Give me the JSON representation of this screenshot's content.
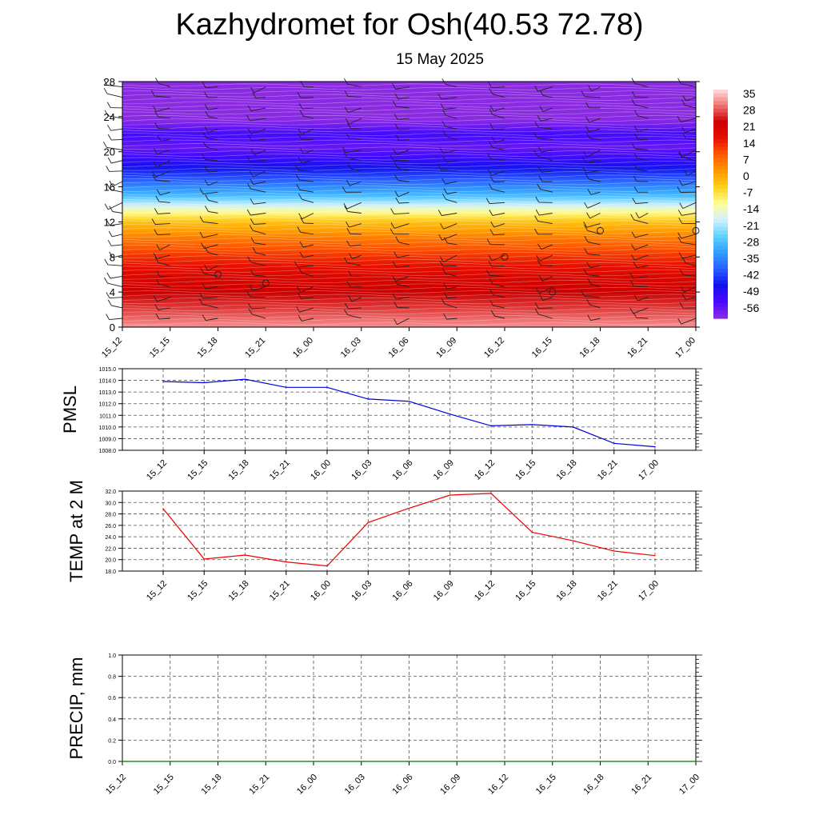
{
  "title": "Kazhydromet for Osh(40.53 72.78)",
  "subtitle": "15 May 2025",
  "colors": {
    "pmsl_line": "#0000dd",
    "temp_line": "#ee0000",
    "precip_line": "#007700",
    "colormap": [
      "#8a2be2",
      "#4b0aff",
      "#1010ee",
      "#2a5cff",
      "#2f9cff",
      "#5fd0ff",
      "#cff0ff",
      "#ffff99",
      "#ffd21a",
      "#ff9a00",
      "#ff5a00",
      "#e81000",
      "#cc0000",
      "#f07070",
      "#ffe0e0"
    ]
  },
  "chart_data": [
    {
      "type": "heatmap",
      "name": "upper-air temperature cross-section",
      "x": [
        "15_12",
        "15_15",
        "15_18",
        "15_21",
        "16_00",
        "16_03",
        "16_06",
        "16_09",
        "16_12",
        "16_15",
        "16_18",
        "16_21",
        "17_00"
      ],
      "yticks": [
        "0",
        "4",
        "8",
        "12",
        "16",
        "20",
        "24",
        "28"
      ],
      "ylim": [
        0,
        28
      ],
      "profile_y": [
        0,
        2,
        4,
        6,
        8,
        10,
        12,
        13.5,
        15,
        17,
        19,
        20.5,
        22,
        24,
        28
      ],
      "profile_t": [
        33,
        28,
        24,
        20,
        14,
        7,
        -2,
        -14,
        -28,
        -40,
        -50,
        -56,
        -52,
        -62,
        -62
      ],
      "colorbar": {
        "labels": [
          "35",
          "28",
          "21",
          "14",
          "7",
          "0",
          "-7",
          "-14",
          "-21",
          "-28",
          "-35",
          "-42",
          "-49",
          "-56"
        ],
        "range": [
          -60,
          38
        ]
      },
      "wind_barbs": true,
      "calm_circles": [
        {
          "x": "15_18",
          "y": 6
        },
        {
          "x": "15_21",
          "y": 5
        },
        {
          "x": "16_12",
          "y": 8
        },
        {
          "x": "16_15",
          "y": 4
        },
        {
          "x": "16_18",
          "y": 11
        },
        {
          "x": "17_00",
          "y": 11
        }
      ]
    },
    {
      "type": "line",
      "name": "PMSL",
      "ylabel": "PMSL",
      "ylim": [
        1008.0,
        1015.0
      ],
      "yticks": [
        "1008.0",
        "1009.0",
        "1010.0",
        "1011.0",
        "1012.0",
        "1013.0",
        "1014.0",
        "1015.0"
      ],
      "categories": [
        "15_12",
        "15_15",
        "15_18",
        "15_21",
        "16_00",
        "16_03",
        "16_06",
        "16_09",
        "16_12",
        "16_15",
        "16_18",
        "16_21",
        "17_00"
      ],
      "values": [
        1013.9,
        1013.8,
        1014.1,
        1013.4,
        1013.4,
        1012.4,
        1012.2,
        1011.1,
        1010.1,
        1010.2,
        1010.0,
        1008.6,
        1008.3
      ],
      "grid": true
    },
    {
      "type": "line",
      "name": "TEMP",
      "ylabel": "TEMP at 2 M",
      "ylim": [
        18.0,
        32.0
      ],
      "yticks": [
        "18.0",
        "20.0",
        "22.0",
        "24.0",
        "26.0",
        "28.0",
        "30.0",
        "32.0"
      ],
      "categories": [
        "15_12",
        "15_15",
        "15_18",
        "15_21",
        "16_00",
        "16_03",
        "16_06",
        "16_09",
        "16_12",
        "16_15",
        "16_18",
        "16_21",
        "17_00"
      ],
      "values": [
        28.9,
        20.1,
        20.8,
        19.6,
        18.9,
        26.5,
        29.0,
        31.3,
        31.6,
        24.8,
        23.3,
        21.5,
        20.7
      ],
      "grid": true
    },
    {
      "type": "line",
      "name": "PRECIP",
      "ylabel": "PRECIP, mm",
      "ylim": [
        0.0,
        1.0
      ],
      "yticks": [
        "0.0",
        "0.2",
        "0.4",
        "0.6",
        "0.8",
        "1.0"
      ],
      "categories": [
        "15_12",
        "15_15",
        "15_18",
        "15_21",
        "16_00",
        "16_03",
        "16_06",
        "16_09",
        "16_12",
        "16_15",
        "16_18",
        "16_21",
        "17_00"
      ],
      "values": [
        0,
        0,
        0,
        0,
        0,
        0,
        0,
        0,
        0,
        0,
        0,
        0,
        0
      ],
      "grid": true
    }
  ]
}
